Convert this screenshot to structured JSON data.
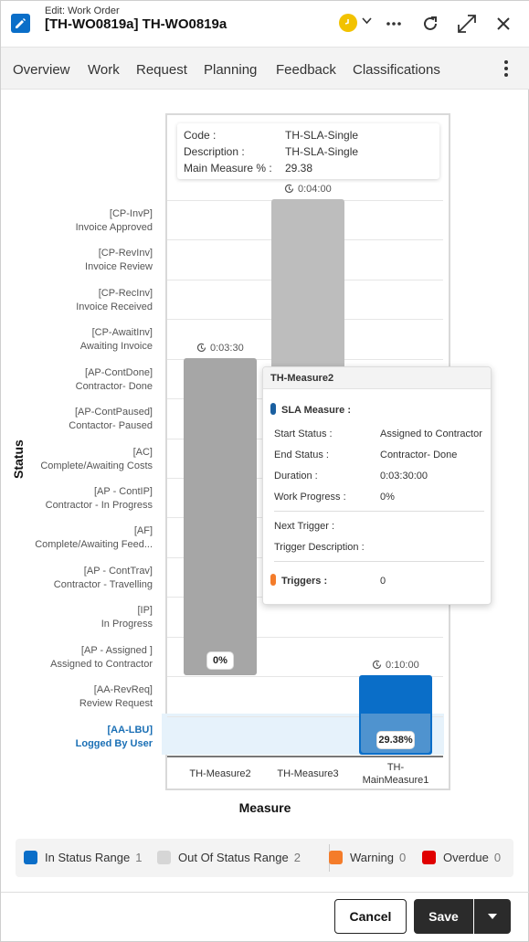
{
  "header": {
    "subtitle": "Edit: Work Order",
    "title": "[TH-WO0819a] TH-WO0819a",
    "icons": [
      "edit-icon",
      "clock-icon",
      "chevron-down-icon",
      "more-horizontal-icon",
      "refresh-icon",
      "expand-icon",
      "close-icon"
    ]
  },
  "tabs": [
    {
      "label": "Overview"
    },
    {
      "label": "Work"
    },
    {
      "label": "Request"
    },
    {
      "label": "Planning"
    },
    {
      "label": "Feedback"
    },
    {
      "label": "Classifications"
    }
  ],
  "info_card": {
    "code_label": "Code :",
    "code_value": "TH-SLA-Single",
    "desc_label": "Description :",
    "desc_value": "TH-SLA-Single",
    "main_label": "Main Measure % :",
    "main_value": "29.38"
  },
  "chart_data": {
    "type": "bar",
    "xlabel": "Measure",
    "ylabel": "Status",
    "y_categories": [
      {
        "code": "[CP-InvP]",
        "name": "Invoice Approved"
      },
      {
        "code": "[CP-RevInv]",
        "name": "Invoice Review"
      },
      {
        "code": "[CP-RecInv]",
        "name": "Invoice Received"
      },
      {
        "code": "[CP-AwaitInv]",
        "name": "Awaiting Invoice"
      },
      {
        "code": "[AP-ContDone]",
        "name": "Contractor- Done"
      },
      {
        "code": "[AP-ContPaused]",
        "name": "Contactor- Paused"
      },
      {
        "code": "[AC]",
        "name": "Complete/Awaiting Costs"
      },
      {
        "code": "[AP - ContIP]",
        "name": "Contractor - In Progress"
      },
      {
        "code": "[AF]",
        "name": "Complete/Awaiting Feed..."
      },
      {
        "code": "[AP - ContTrav]",
        "name": "Contractor - Travelling"
      },
      {
        "code": "[IP]",
        "name": "In Progress"
      },
      {
        "code": "[AP - Assigned ]",
        "name": "Assigned to Contractor"
      },
      {
        "code": "[AA-RevReq]",
        "name": "Review Request"
      },
      {
        "code": "[AA-LBU]",
        "name": "Logged By User"
      }
    ],
    "current_status": "[AA-LBU]",
    "measures": [
      {
        "name": "TH-Measure2",
        "start": "[AP - Assigned ]",
        "end": "[AP-ContDone]",
        "duration": "0:03:30",
        "progress_label": "0%",
        "progress": 0,
        "state": "out_of_range"
      },
      {
        "name": "TH-Measure3",
        "start": "[AP-ContDone]",
        "end": "[CP-InvP]",
        "duration": "0:04:00",
        "progress_label": "0%",
        "progress": 0,
        "state": "out_of_range"
      },
      {
        "name": "TH-\nMainMeasure1",
        "start": "[AA-LBU]",
        "end": "[AA-RevReq]",
        "duration": "0:10:00",
        "progress_label": "29.38%",
        "progress": 29.38,
        "state": "in_range"
      }
    ]
  },
  "tooltip": {
    "title": "TH-Measure2",
    "sla_label": "SLA Measure :",
    "start_label": "Start Status :",
    "start_value": "Assigned to Contractor",
    "end_label": "End Status :",
    "end_value": "Contractor- Done",
    "duration_label": "Duration :",
    "duration_value": "0:03:30:00",
    "progress_label": "Work Progress :",
    "progress_value": "0%",
    "next_trigger_label": "Next Trigger :",
    "trigger_desc_label": "Trigger Description :",
    "triggers_label": "Triggers :",
    "triggers_value": "0"
  },
  "legend": [
    {
      "label": "In Status Range",
      "count": "1",
      "color": "#0a6ec8"
    },
    {
      "label": "Out Of Status Range",
      "count": "2",
      "color": "#d6d6d6"
    },
    {
      "label": "Warning",
      "count": "0",
      "color": "#f47c2a"
    },
    {
      "label": "Overdue",
      "count": "0",
      "color": "#e00000"
    }
  ],
  "footer": {
    "cancel_label": "Cancel",
    "save_label": "Save"
  },
  "colors": {
    "in_range": "#0a6ec8",
    "out_range_light": "#bdbdbd",
    "out_range_dark": "#a6a6a6",
    "accent": "#1a6fb5"
  }
}
